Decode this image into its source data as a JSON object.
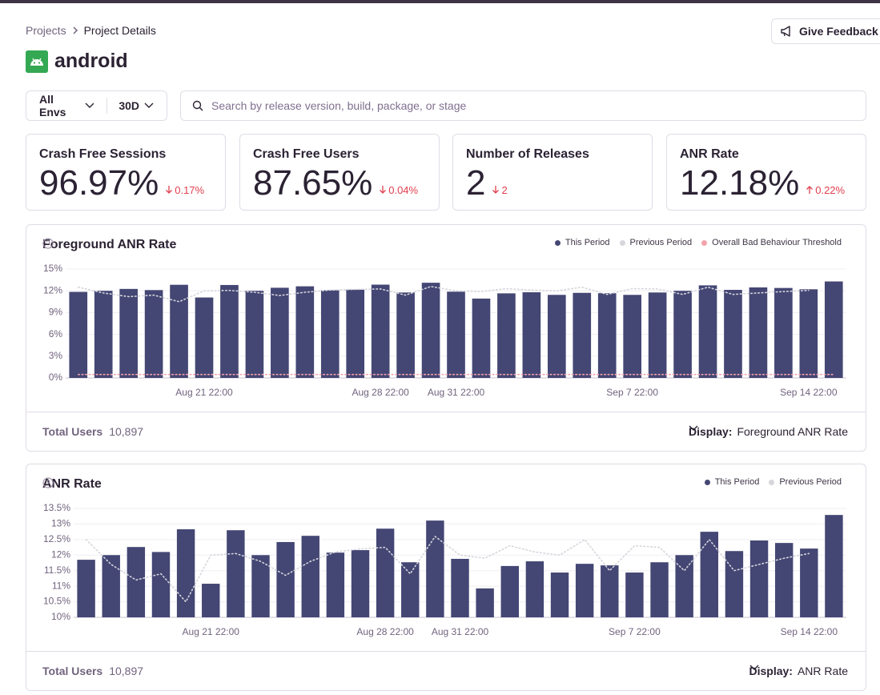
{
  "breadcrumbs": [
    "Projects",
    "Project Details"
  ],
  "feedback_button": "Give Feedback",
  "project": "android",
  "filters": {
    "environment": "All Envs",
    "period": "30D",
    "search_placeholder": "Search by release version, build, package, or stage"
  },
  "stats": [
    {
      "label": "Crash Free Sessions",
      "value": "96.97%",
      "change": "0.17%",
      "direction": "down"
    },
    {
      "label": "Crash Free Users",
      "value": "87.65%",
      "change": "0.04%",
      "direction": "down"
    },
    {
      "label": "Number of Releases",
      "value": "2",
      "change": "2",
      "direction": "down"
    },
    {
      "label": "ANR Rate",
      "value": "12.18%",
      "change": "0.22%",
      "direction": "up"
    }
  ],
  "chart_data": [
    {
      "type": "bar",
      "title": "Foreground ANR Rate",
      "categories": [
        null,
        null,
        null,
        null,
        null,
        "Aug 21 22:00",
        null,
        null,
        null,
        null,
        null,
        null,
        "Aug 28 22:00",
        null,
        null,
        "Aug 31 22:00",
        null,
        null,
        null,
        null,
        null,
        null,
        "Sep 7 22:00",
        null,
        null,
        null,
        null,
        null,
        null,
        "Sep 14 22:00",
        null
      ],
      "series": [
        {
          "name": "This Period",
          "color": "#444674",
          "values": [
            11.85,
            12.0,
            12.26,
            12.1,
            12.83,
            11.08,
            12.8,
            12.0,
            12.42,
            12.62,
            12.08,
            12.16,
            12.85,
            11.77,
            13.11,
            11.88,
            10.93,
            11.65,
            11.8,
            11.44,
            11.72,
            11.67,
            11.44,
            11.77,
            12.0,
            12.75,
            12.13,
            12.47,
            12.39,
            12.21,
            13.29
          ]
        },
        {
          "name": "Previous Period",
          "type": "line",
          "color": "#d6d6dc",
          "values": [
            12.5,
            11.7,
            11.2,
            11.4,
            10.5,
            12.0,
            12.05,
            11.8,
            11.35,
            11.8,
            12.1,
            12.2,
            12.25,
            11.4,
            12.6,
            12.0,
            11.9,
            12.3,
            12.1,
            12.0,
            12.5,
            11.5,
            12.3,
            12.25,
            11.5,
            12.5,
            11.5,
            11.7,
            11.9,
            12.05,
            null
          ]
        },
        {
          "name": "Overall Bad Behaviour Threshold",
          "type": "line",
          "color": "#f2a3ab",
          "values": [
            0.47,
            0.47,
            0.47,
            0.47,
            0.47,
            0.47,
            0.47,
            0.47,
            0.47,
            0.47,
            0.47,
            0.47,
            0.47,
            0.47,
            0.47,
            0.47,
            0.47,
            0.47,
            0.47,
            0.47,
            0.47,
            0.47,
            0.47,
            0.47,
            0.47,
            0.47,
            0.47,
            0.47,
            0.47,
            0.47,
            0.47
          ]
        }
      ],
      "ylim": [
        0,
        15
      ],
      "yticks": [
        {
          "value": 0,
          "label": "0%"
        },
        {
          "value": 3,
          "label": "3%"
        },
        {
          "value": 6,
          "label": "6%"
        },
        {
          "value": 9,
          "label": "9%"
        },
        {
          "value": 12,
          "label": "12%"
        },
        {
          "value": 15,
          "label": "15%"
        }
      ],
      "grid": true,
      "footer_label": "Total Users",
      "footer_value": "10,897",
      "display_label": "Display:",
      "display_value": "Foreground ANR Rate"
    },
    {
      "type": "bar",
      "title": "ANR Rate",
      "categories": [
        null,
        null,
        null,
        null,
        null,
        "Aug 21 22:00",
        null,
        null,
        null,
        null,
        null,
        null,
        "Aug 28 22:00",
        null,
        null,
        "Aug 31 22:00",
        null,
        null,
        null,
        null,
        null,
        null,
        "Sep 7 22:00",
        null,
        null,
        null,
        null,
        null,
        null,
        "Sep 14 22:00",
        null
      ],
      "series": [
        {
          "name": "This Period",
          "color": "#444674",
          "values": [
            11.85,
            12.0,
            12.26,
            12.1,
            12.83,
            11.08,
            12.8,
            12.0,
            12.42,
            12.62,
            12.08,
            12.16,
            12.85,
            11.77,
            13.11,
            11.88,
            10.93,
            11.65,
            11.8,
            11.44,
            11.72,
            11.67,
            11.44,
            11.77,
            12.0,
            12.75,
            12.13,
            12.47,
            12.39,
            12.21,
            13.29
          ]
        },
        {
          "name": "Previous Period",
          "type": "line",
          "color": "#d6d6dc",
          "values": [
            12.5,
            11.7,
            11.2,
            11.4,
            10.5,
            12.0,
            12.05,
            11.8,
            11.35,
            11.8,
            12.1,
            12.2,
            12.25,
            11.4,
            12.6,
            12.0,
            11.9,
            12.3,
            12.1,
            12.0,
            12.5,
            11.5,
            12.3,
            12.25,
            11.5,
            12.5,
            11.5,
            11.7,
            11.9,
            12.05,
            null
          ]
        }
      ],
      "ylim": [
        10,
        13.5
      ],
      "yticks": [
        {
          "value": 10,
          "label": "10%"
        },
        {
          "value": 10.5,
          "label": "10.5%"
        },
        {
          "value": 11,
          "label": "11%"
        },
        {
          "value": 11.5,
          "label": "11.5%"
        },
        {
          "value": 12,
          "label": "12%"
        },
        {
          "value": 12.5,
          "label": "12.5%"
        },
        {
          "value": 13,
          "label": "13%"
        },
        {
          "value": 13.5,
          "label": "13.5%"
        }
      ],
      "grid": true,
      "footer_label": "Total Users",
      "footer_value": "10,897",
      "display_label": "Display:",
      "display_value": "ANR Rate"
    }
  ]
}
